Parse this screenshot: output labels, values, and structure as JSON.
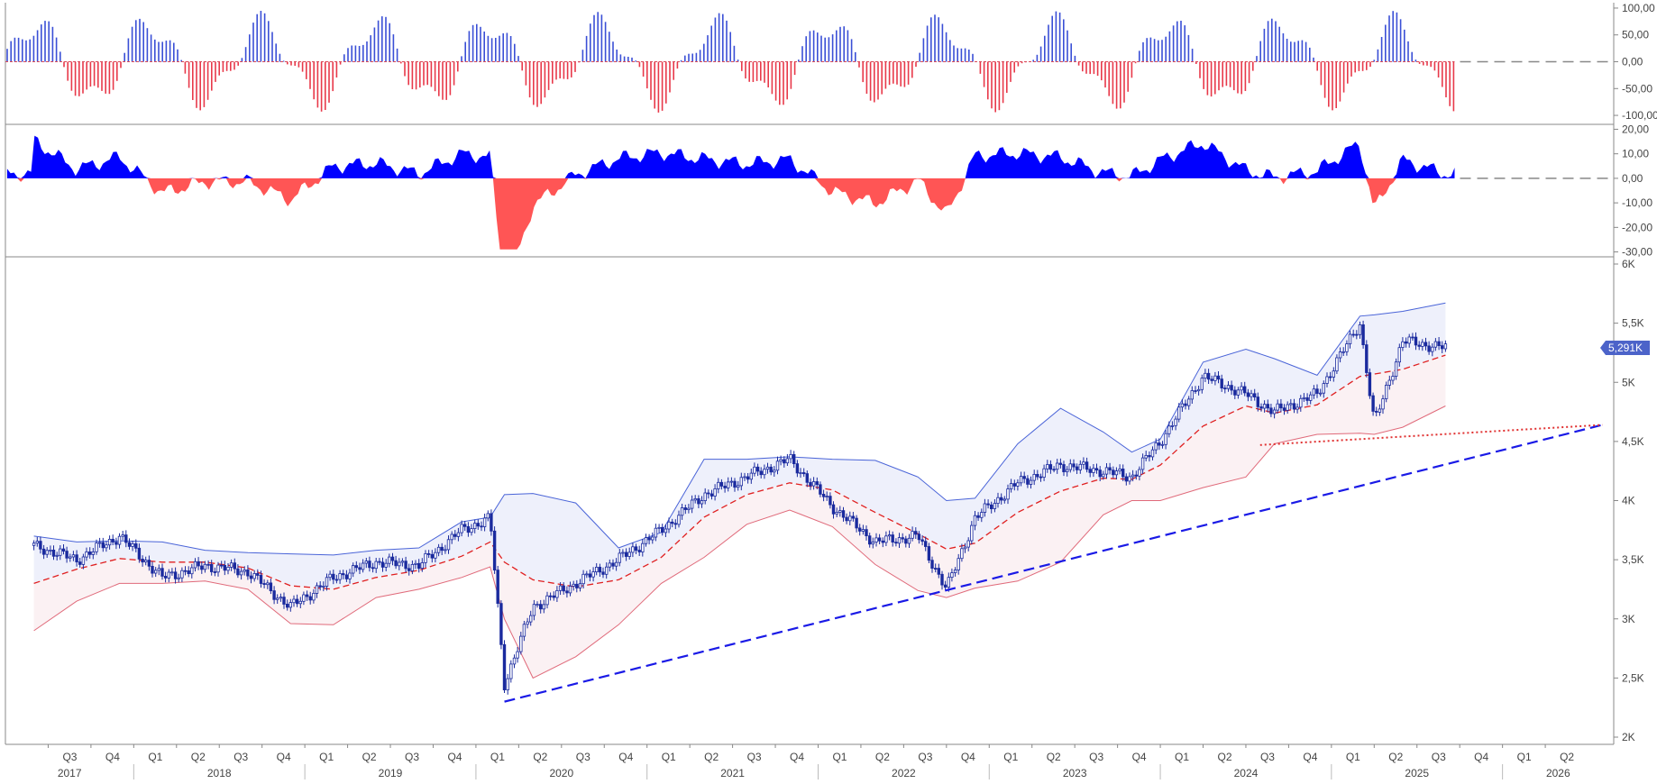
{
  "chart_data": [
    {
      "panel": "oscillator",
      "type": "bar",
      "y_axis": {
        "ticks": [
          "100,00",
          "50,00",
          "0,00",
          "-50,00",
          "-100,00"
        ],
        "ylim": [
          -110,
          110
        ]
      },
      "colors": {
        "positive": "#3a4fd6",
        "negative": "#e8394a",
        "zero_line": "#888888"
      }
    },
    {
      "panel": "histogram",
      "type": "area",
      "y_axis": {
        "ticks": [
          "20,00",
          "10,00",
          "0,00",
          "-10,00",
          "-20,00",
          "-30,00"
        ],
        "ylim": [
          -32,
          22
        ]
      },
      "colors": {
        "positive": "#0000ff",
        "negative": "#ff5555",
        "zero_line": "#888888"
      }
    },
    {
      "panel": "price",
      "type": "line",
      "description_series": [
        "candlesticks",
        "bollinger upper",
        "bollinger lower",
        "moving average",
        "trend line",
        "support line"
      ],
      "y_axis": {
        "ticks": [
          "6K",
          "5,5K",
          "5K",
          "4,5K",
          "4K",
          "3,5K",
          "3K",
          "2,5K",
          "2K"
        ],
        "ylim": [
          2000,
          6000
        ]
      },
      "last_price_label": "5,291K",
      "last_price": 5291,
      "points": [
        {
          "x": "2017-06",
          "close": 3620,
          "upper": 3700,
          "lower": 2900,
          "ma": 3300
        },
        {
          "x": "2017-09",
          "close": 3500,
          "upper": 3650,
          "lower": 3150,
          "ma": 3420
        },
        {
          "x": "2017-12",
          "close": 3700,
          "upper": 3660,
          "lower": 3300,
          "ma": 3510
        },
        {
          "x": "2018-03",
          "close": 3350,
          "upper": 3650,
          "lower": 3300,
          "ma": 3480
        },
        {
          "x": "2018-06",
          "close": 3450,
          "upper": 3580,
          "lower": 3320,
          "ma": 3480
        },
        {
          "x": "2018-09",
          "close": 3400,
          "upper": 3560,
          "lower": 3250,
          "ma": 3430
        },
        {
          "x": "2018-12",
          "close": 3100,
          "upper": 3550,
          "lower": 2960,
          "ma": 3280
        },
        {
          "x": "2019-03",
          "close": 3350,
          "upper": 3540,
          "lower": 2950,
          "ma": 3250
        },
        {
          "x": "2019-06",
          "close": 3480,
          "upper": 3580,
          "lower": 3180,
          "ma": 3350
        },
        {
          "x": "2019-09",
          "close": 3450,
          "upper": 3600,
          "lower": 3250,
          "ma": 3410
        },
        {
          "x": "2019-12",
          "close": 3750,
          "upper": 3820,
          "lower": 3350,
          "ma": 3530
        },
        {
          "x": "2020-02",
          "close": 3850,
          "upper": 3860,
          "lower": 3440,
          "ma": 3650
        },
        {
          "x": "2020-03",
          "close": 2450,
          "upper": 4050,
          "lower": 3000,
          "ma": 3480
        },
        {
          "x": "2020-05",
          "close": 3100,
          "upper": 4060,
          "lower": 2500,
          "ma": 3330
        },
        {
          "x": "2020-08",
          "close": 3300,
          "upper": 3980,
          "lower": 2680,
          "ma": 3270
        },
        {
          "x": "2020-11",
          "close": 3500,
          "upper": 3600,
          "lower": 2950,
          "ma": 3330
        },
        {
          "x": "2021-02",
          "close": 3750,
          "upper": 3730,
          "lower": 3300,
          "ma": 3520
        },
        {
          "x": "2021-05",
          "close": 4050,
          "upper": 4350,
          "lower": 3520,
          "ma": 3860
        },
        {
          "x": "2021-08",
          "close": 4200,
          "upper": 4350,
          "lower": 3800,
          "ma": 4050
        },
        {
          "x": "2021-11",
          "close": 4350,
          "upper": 4370,
          "lower": 3920,
          "ma": 4150
        },
        {
          "x": "2022-02",
          "close": 3950,
          "upper": 4350,
          "lower": 3780,
          "ma": 4090
        },
        {
          "x": "2022-05",
          "close": 3650,
          "upper": 4340,
          "lower": 3460,
          "ma": 3900
        },
        {
          "x": "2022-08",
          "close": 3700,
          "upper": 4200,
          "lower": 3240,
          "ma": 3720
        },
        {
          "x": "2022-10",
          "close": 3250,
          "upper": 4000,
          "lower": 3180,
          "ma": 3590
        },
        {
          "x": "2022-12",
          "close": 3850,
          "upper": 4020,
          "lower": 3260,
          "ma": 3640
        },
        {
          "x": "2023-03",
          "close": 4150,
          "upper": 4480,
          "lower": 3320,
          "ma": 3900
        },
        {
          "x": "2023-06",
          "close": 4300,
          "upper": 4780,
          "lower": 3480,
          "ma": 4080
        },
        {
          "x": "2023-09",
          "close": 4250,
          "upper": 4580,
          "lower": 3880,
          "ma": 4190
        },
        {
          "x": "2023-11",
          "close": 4200,
          "upper": 4410,
          "lower": 4000,
          "ma": 4180
        },
        {
          "x": "2024-01",
          "close": 4500,
          "upper": 4520,
          "lower": 4000,
          "ma": 4300
        },
        {
          "x": "2024-04",
          "close": 5050,
          "upper": 5170,
          "lower": 4110,
          "ma": 4630
        },
        {
          "x": "2024-07",
          "close": 4900,
          "upper": 5280,
          "lower": 4200,
          "ma": 4800
        },
        {
          "x": "2024-09",
          "close": 4750,
          "upper": 5200,
          "lower": 4480,
          "ma": 4740
        },
        {
          "x": "2024-12",
          "close": 4900,
          "upper": 5060,
          "lower": 4560,
          "ma": 4810
        },
        {
          "x": "2025-03",
          "close": 5500,
          "upper": 5560,
          "lower": 4570,
          "ma": 5050
        },
        {
          "x": "2025-04",
          "close": 4650,
          "upper": 5570,
          "lower": 4560,
          "ma": 5070
        },
        {
          "x": "2025-06",
          "close": 5350,
          "upper": 5600,
          "lower": 4620,
          "ma": 5110
        },
        {
          "x": "2025-09",
          "close": 5291,
          "upper": 5670,
          "lower": 4800,
          "ma": 5230
        }
      ],
      "trend_line": {
        "from": {
          "x": "2020-03",
          "y": 2300
        },
        "to": {
          "x": "2026-08",
          "y": 4640
        },
        "color": "#1a1ae6"
      },
      "support_line": {
        "from": {
          "x": "2024-08",
          "y": 4470
        },
        "to": {
          "x": "2026-08",
          "y": 4640
        },
        "color": "#e03030"
      },
      "colors": {
        "candle": "#1a2a9e",
        "upper_band": "#4a64d8",
        "lower_band": "#e06a7a",
        "ma": "#e02020",
        "band_fill_top": "#eef0fb",
        "band_fill_bottom": "#fbf1f3",
        "price_tag": "#4c63c9"
      }
    }
  ],
  "x_axis": {
    "quarters": [
      "Q3",
      "Q4",
      "Q1",
      "Q2",
      "Q3",
      "Q4",
      "Q1",
      "Q2",
      "Q3",
      "Q4",
      "Q1",
      "Q2",
      "Q3",
      "Q4",
      "Q1",
      "Q2",
      "Q3",
      "Q4",
      "Q1",
      "Q2",
      "Q3",
      "Q4",
      "Q1",
      "Q2",
      "Q3",
      "Q4",
      "Q1",
      "Q2",
      "Q3",
      "Q4",
      "Q1",
      "Q2",
      "Q3",
      "Q4",
      "Q1",
      "Q2"
    ],
    "years": [
      "2017",
      "2018",
      "2019",
      "2020",
      "2021",
      "2022",
      "2023",
      "2024",
      "2025",
      "2026"
    ]
  }
}
